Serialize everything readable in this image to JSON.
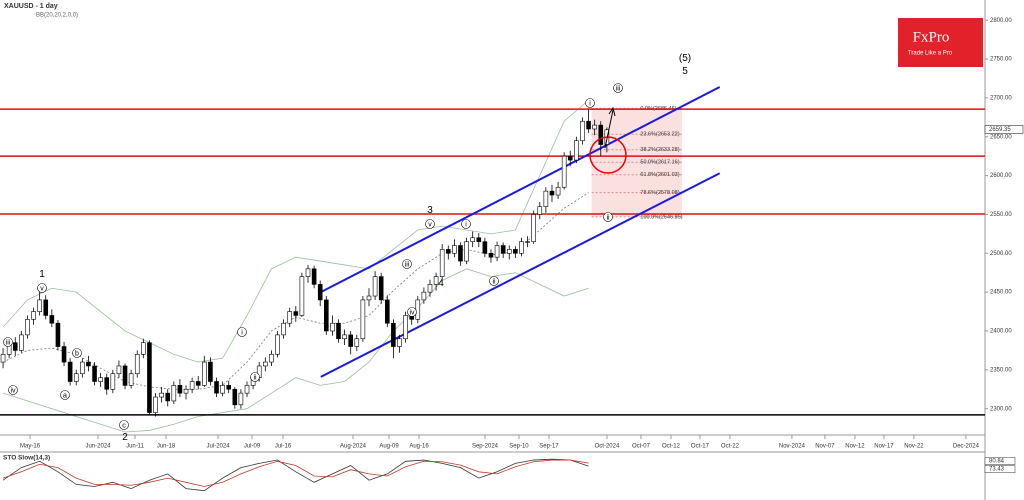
{
  "chart_data": {
    "type": "candlestick",
    "title": "XAUUSD - 1 day",
    "subtitle": "BB(20,20,2,0,0)",
    "logo": "FxPro",
    "logo_tagline": "Trade Like a Pro",
    "xlim": [
      -0.5,
      161
    ],
    "ylim": [
      2270,
      2826
    ],
    "xticks": [
      {
        "value": 4.43,
        "label": "May-16"
      },
      {
        "value": 15.57,
        "label": "Jun-2024"
      },
      {
        "value": 21.64,
        "label": "Jun-11"
      },
      {
        "value": 26.72,
        "label": "Jun-18"
      },
      {
        "value": 35.25,
        "label": "Jul-2024"
      },
      {
        "value": 40.82,
        "label": "Jul-09"
      },
      {
        "value": 45.9,
        "label": "Jul-16"
      },
      {
        "value": 57.38,
        "label": "Aug-2024"
      },
      {
        "value": 63.28,
        "label": "Aug-09"
      },
      {
        "value": 68.2,
        "label": "Aug-16"
      },
      {
        "value": 79.02,
        "label": "Sep-2024"
      },
      {
        "value": 84.59,
        "label": "Sep-10"
      },
      {
        "value": 89.51,
        "label": "Sep-17"
      },
      {
        "value": 99.02,
        "label": "Oct-2024"
      },
      {
        "value": 104.59,
        "label": "Oct-07"
      },
      {
        "value": 109.51,
        "label": "Oct-12"
      },
      {
        "value": 114.26,
        "label": "Oct-17"
      },
      {
        "value": 119.18,
        "label": "Oct-22"
      },
      {
        "value": 129.34,
        "label": "Nov-2024"
      },
      {
        "value": 134.75,
        "label": "Nov-07"
      },
      {
        "value": 139.67,
        "label": "Nov-12"
      },
      {
        "value": 144.43,
        "label": "Nov-17"
      },
      {
        "value": 149.34,
        "label": "Nov-22"
      },
      {
        "value": 157.87,
        "label": "Dec-2024"
      }
    ],
    "yticks": [
      {
        "value": 2300,
        "label": "2300.00"
      },
      {
        "value": 2350,
        "label": "2350.00"
      },
      {
        "value": 2400,
        "label": "2400.00"
      },
      {
        "value": 2450,
        "label": "2450.00"
      },
      {
        "value": 2500,
        "label": "2500.00"
      },
      {
        "value": 2550,
        "label": "2550.00"
      },
      {
        "value": 2600,
        "label": "2600.00"
      },
      {
        "value": 2650,
        "label": "2650.00"
      },
      {
        "value": 2700,
        "label": "2700.00"
      },
      {
        "value": 2750,
        "label": "2750.00"
      },
      {
        "value": 2800,
        "label": "2800.00"
      }
    ],
    "last_price": 2659.35,
    "ohlc": [
      [
        2360,
        2378,
        2352,
        2370
      ],
      [
        2370,
        2390,
        2365,
        2385
      ],
      [
        2385,
        2392,
        2368,
        2375
      ],
      [
        2375,
        2400,
        2372,
        2395
      ],
      [
        2395,
        2420,
        2390,
        2415
      ],
      [
        2415,
        2430,
        2408,
        2425
      ],
      [
        2425,
        2452,
        2420,
        2440
      ],
      [
        2440,
        2446,
        2415,
        2420
      ],
      [
        2420,
        2428,
        2405,
        2410
      ],
      [
        2410,
        2414,
        2375,
        2380
      ],
      [
        2380,
        2386,
        2355,
        2360
      ],
      [
        2360,
        2365,
        2330,
        2335
      ],
      [
        2335,
        2350,
        2330,
        2345
      ],
      [
        2345,
        2365,
        2340,
        2360
      ],
      [
        2360,
        2368,
        2348,
        2355
      ],
      [
        2355,
        2360,
        2330,
        2335
      ],
      [
        2335,
        2346,
        2328,
        2340
      ],
      [
        2340,
        2345,
        2318,
        2325
      ],
      [
        2325,
        2350,
        2320,
        2345
      ],
      [
        2345,
        2362,
        2340,
        2355
      ],
      [
        2355,
        2358,
        2325,
        2330
      ],
      [
        2330,
        2350,
        2326,
        2345
      ],
      [
        2345,
        2375,
        2340,
        2370
      ],
      [
        2370,
        2390,
        2365,
        2385
      ],
      [
        2385,
        2388,
        2292,
        2295
      ],
      [
        2295,
        2320,
        2290,
        2315
      ],
      [
        2315,
        2328,
        2308,
        2320
      ],
      [
        2320,
        2325,
        2303,
        2310
      ],
      [
        2310,
        2335,
        2306,
        2330
      ],
      [
        2330,
        2338,
        2315,
        2320
      ],
      [
        2320,
        2330,
        2312,
        2325
      ],
      [
        2325,
        2340,
        2320,
        2335
      ],
      [
        2335,
        2342,
        2325,
        2330
      ],
      [
        2330,
        2368,
        2328,
        2360
      ],
      [
        2360,
        2366,
        2330,
        2335
      ],
      [
        2335,
        2340,
        2315,
        2320
      ],
      [
        2320,
        2335,
        2316,
        2330
      ],
      [
        2330,
        2336,
        2320,
        2325
      ],
      [
        2325,
        2328,
        2300,
        2305
      ],
      [
        2305,
        2325,
        2300,
        2320
      ],
      [
        2320,
        2335,
        2315,
        2330
      ],
      [
        2330,
        2345,
        2325,
        2340
      ],
      [
        2340,
        2360,
        2335,
        2355
      ],
      [
        2355,
        2366,
        2348,
        2360
      ],
      [
        2360,
        2375,
        2355,
        2370
      ],
      [
        2370,
        2400,
        2366,
        2395
      ],
      [
        2395,
        2415,
        2390,
        2410
      ],
      [
        2410,
        2430,
        2405,
        2425
      ],
      [
        2425,
        2432,
        2412,
        2420
      ],
      [
        2420,
        2475,
        2418,
        2470
      ],
      [
        2470,
        2485,
        2462,
        2480
      ],
      [
        2480,
        2484,
        2455,
        2460
      ],
      [
        2460,
        2465,
        2432,
        2440
      ],
      [
        2440,
        2445,
        2395,
        2400
      ],
      [
        2400,
        2420,
        2394,
        2410
      ],
      [
        2410,
        2415,
        2385,
        2390
      ],
      [
        2390,
        2402,
        2382,
        2395
      ],
      [
        2395,
        2400,
        2370,
        2380
      ],
      [
        2380,
        2395,
        2374,
        2390
      ],
      [
        2390,
        2445,
        2386,
        2440
      ],
      [
        2440,
        2455,
        2432,
        2445
      ],
      [
        2445,
        2477,
        2440,
        2470
      ],
      [
        2470,
        2475,
        2435,
        2440
      ],
      [
        2440,
        2446,
        2405,
        2410
      ],
      [
        2410,
        2415,
        2365,
        2380
      ],
      [
        2380,
        2395,
        2372,
        2390
      ],
      [
        2390,
        2425,
        2385,
        2420
      ],
      [
        2420,
        2428,
        2408,
        2415
      ],
      [
        2415,
        2445,
        2410,
        2440
      ],
      [
        2440,
        2456,
        2435,
        2450
      ],
      [
        2450,
        2466,
        2444,
        2460
      ],
      [
        2460,
        2475,
        2452,
        2470
      ],
      [
        2470,
        2512,
        2466,
        2505
      ],
      [
        2505,
        2510,
        2492,
        2500
      ],
      [
        2500,
        2518,
        2495,
        2510
      ],
      [
        2510,
        2514,
        2484,
        2490
      ],
      [
        2490,
        2520,
        2486,
        2515
      ],
      [
        2515,
        2528,
        2508,
        2520
      ],
      [
        2520,
        2526,
        2508,
        2515
      ],
      [
        2515,
        2520,
        2495,
        2500
      ],
      [
        2500,
        2505,
        2488,
        2495
      ],
      [
        2495,
        2515,
        2490,
        2510
      ],
      [
        2510,
        2514,
        2494,
        2500
      ],
      [
        2500,
        2510,
        2492,
        2505
      ],
      [
        2505,
        2509,
        2494,
        2500
      ],
      [
        2500,
        2520,
        2496,
        2515
      ],
      [
        2515,
        2522,
        2508,
        2515
      ],
      [
        2515,
        2555,
        2512,
        2550
      ],
      [
        2550,
        2566,
        2544,
        2560
      ],
      [
        2560,
        2585,
        2552,
        2580
      ],
      [
        2580,
        2588,
        2566,
        2575
      ],
      [
        2575,
        2592,
        2570,
        2585
      ],
      [
        2585,
        2630,
        2582,
        2625
      ],
      [
        2625,
        2632,
        2612,
        2620
      ],
      [
        2620,
        2650,
        2616,
        2645
      ],
      [
        2645,
        2675,
        2640,
        2670
      ],
      [
        2670,
        2686,
        2655,
        2660
      ],
      [
        2660,
        2672,
        2652,
        2665
      ],
      [
        2665,
        2670,
        2625,
        2640
      ],
      [
        2640,
        2662,
        2630,
        2659
      ]
    ],
    "bollinger": {
      "x": [
        0,
        4,
        8,
        12,
        16,
        20,
        24,
        28,
        32,
        36,
        40,
        44,
        48,
        52,
        56,
        60,
        64,
        68,
        72,
        76,
        80,
        84,
        88,
        92,
        96
      ],
      "upper": [
        2405,
        2440,
        2455,
        2450,
        2425,
        2400,
        2385,
        2370,
        2360,
        2365,
        2420,
        2480,
        2495,
        2490,
        2485,
        2480,
        2505,
        2530,
        2535,
        2530,
        2525,
        2530,
        2600,
        2670,
        2697
      ],
      "middle": [
        2360,
        2375,
        2378,
        2370,
        2352,
        2335,
        2328,
        2325,
        2325,
        2330,
        2360,
        2400,
        2418,
        2410,
        2410,
        2420,
        2452,
        2480,
        2500,
        2505,
        2498,
        2502,
        2530,
        2558,
        2578
      ],
      "lower": [
        2320,
        2310,
        2300,
        2290,
        2280,
        2270,
        2272,
        2280,
        2290,
        2295,
        2300,
        2320,
        2340,
        2330,
        2335,
        2360,
        2400,
        2430,
        2465,
        2480,
        2470,
        2475,
        2460,
        2445,
        2455
      ]
    },
    "channel": [
      [
        52.1,
        2450,
        117.5,
        2714
      ],
      [
        52.1,
        2341,
        117.5,
        2603
      ]
    ],
    "levels": [
      2685.6,
      2625,
      2550.6
    ],
    "support": 2292,
    "fib": [
      {
        "value": 2686.46,
        "label": "0.0%(2686.46)"
      },
      {
        "value": 2653.22,
        "label": "23.6%(2653.22)"
      },
      {
        "value": 2633.28,
        "label": "38.2%(2633.28)"
      },
      {
        "value": 2617.16,
        "label": "50.0%(2617.16)"
      },
      {
        "value": 2601.03,
        "label": "61.8%(2601.03)"
      },
      {
        "value": 2578.08,
        "label": "78.6%(2578.08)"
      },
      {
        "value": 2546.85,
        "label": "100.0%(2546.85)"
      }
    ],
    "annotations": [
      "(5)",
      "5",
      "1",
      "v",
      "iii",
      "iv",
      "a",
      "b",
      "c",
      "2",
      "i",
      "ii",
      "iii",
      "iv",
      "v",
      "3",
      "4",
      "i",
      "ii",
      "i",
      "iii",
      "ii"
    ],
    "stochastic": {
      "title": "STO Slow(14,3)",
      "ylim": [
        0,
        100
      ],
      "levels": [
        80.84,
        73.43
      ],
      "x": [
        0,
        3,
        6,
        9,
        12,
        15,
        18,
        21,
        24,
        27,
        30,
        33,
        36,
        39,
        42,
        45,
        48,
        51,
        54,
        57,
        60,
        63,
        66,
        69,
        72,
        75,
        78,
        81,
        84,
        87,
        90,
        93,
        96
      ],
      "series": [
        {
          "color": "#333333",
          "values": [
            40,
            70,
            85,
            60,
            30,
            25,
            35,
            20,
            40,
            55,
            20,
            15,
            45,
            70,
            80,
            88,
            60,
            35,
            55,
            75,
            40,
            55,
            85,
            88,
            80,
            70,
            45,
            60,
            80,
            88,
            90,
            88,
            73.43
          ]
        },
        {
          "color": "#c0392b",
          "values": [
            45,
            60,
            78,
            70,
            45,
            30,
            30,
            28,
            35,
            45,
            35,
            25,
            35,
            55,
            72,
            85,
            75,
            50,
            48,
            65,
            55,
            50,
            72,
            85,
            84,
            76,
            60,
            55,
            72,
            84,
            88,
            88,
            80.84
          ]
        }
      ]
    }
  }
}
